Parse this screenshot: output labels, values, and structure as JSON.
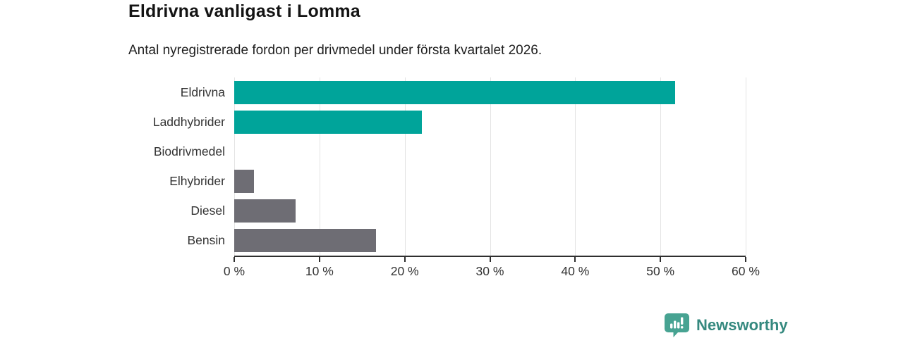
{
  "chart_data": {
    "type": "bar",
    "orientation": "horizontal",
    "title": "Eldrivna vanligast i Lomma",
    "subtitle": "Antal nyregistrerade fordon per drivmedel under första kvartalet 2026.",
    "categories": [
      "Eldrivna",
      "Laddhybrider",
      "Biodrivmedel",
      "Elhybrider",
      "Diesel",
      "Bensin"
    ],
    "values": [
      51.7,
      22.0,
      0,
      2.3,
      7.2,
      16.6
    ],
    "bar_colors": [
      "#00a49a",
      "#00a49a",
      "#6e6d74",
      "#6e6d74",
      "#6e6d74",
      "#6e6d74"
    ],
    "xlim": [
      0,
      60
    ],
    "x_ticks": [
      0,
      10,
      20,
      30,
      40,
      50,
      60
    ],
    "x_tick_labels": [
      "0 %",
      "10 %",
      "20 %",
      "30 %",
      "40 %",
      "50 %",
      "60 %"
    ],
    "grid": true,
    "legend": "none",
    "xlabel": "",
    "ylabel": ""
  },
  "colors": {
    "accent_teal": "#00a49a",
    "neutral_gray": "#6e6d74",
    "grid_line": "#e3e3e3",
    "axis_line": "#2f2f2f",
    "text": "#333333",
    "logo_icon": "#47a392",
    "logo_text": "#35897f"
  },
  "branding": {
    "logo_text": "Newsworthy",
    "logo_icon": "newsworthy-speech-bubble-bar-chart-icon"
  }
}
